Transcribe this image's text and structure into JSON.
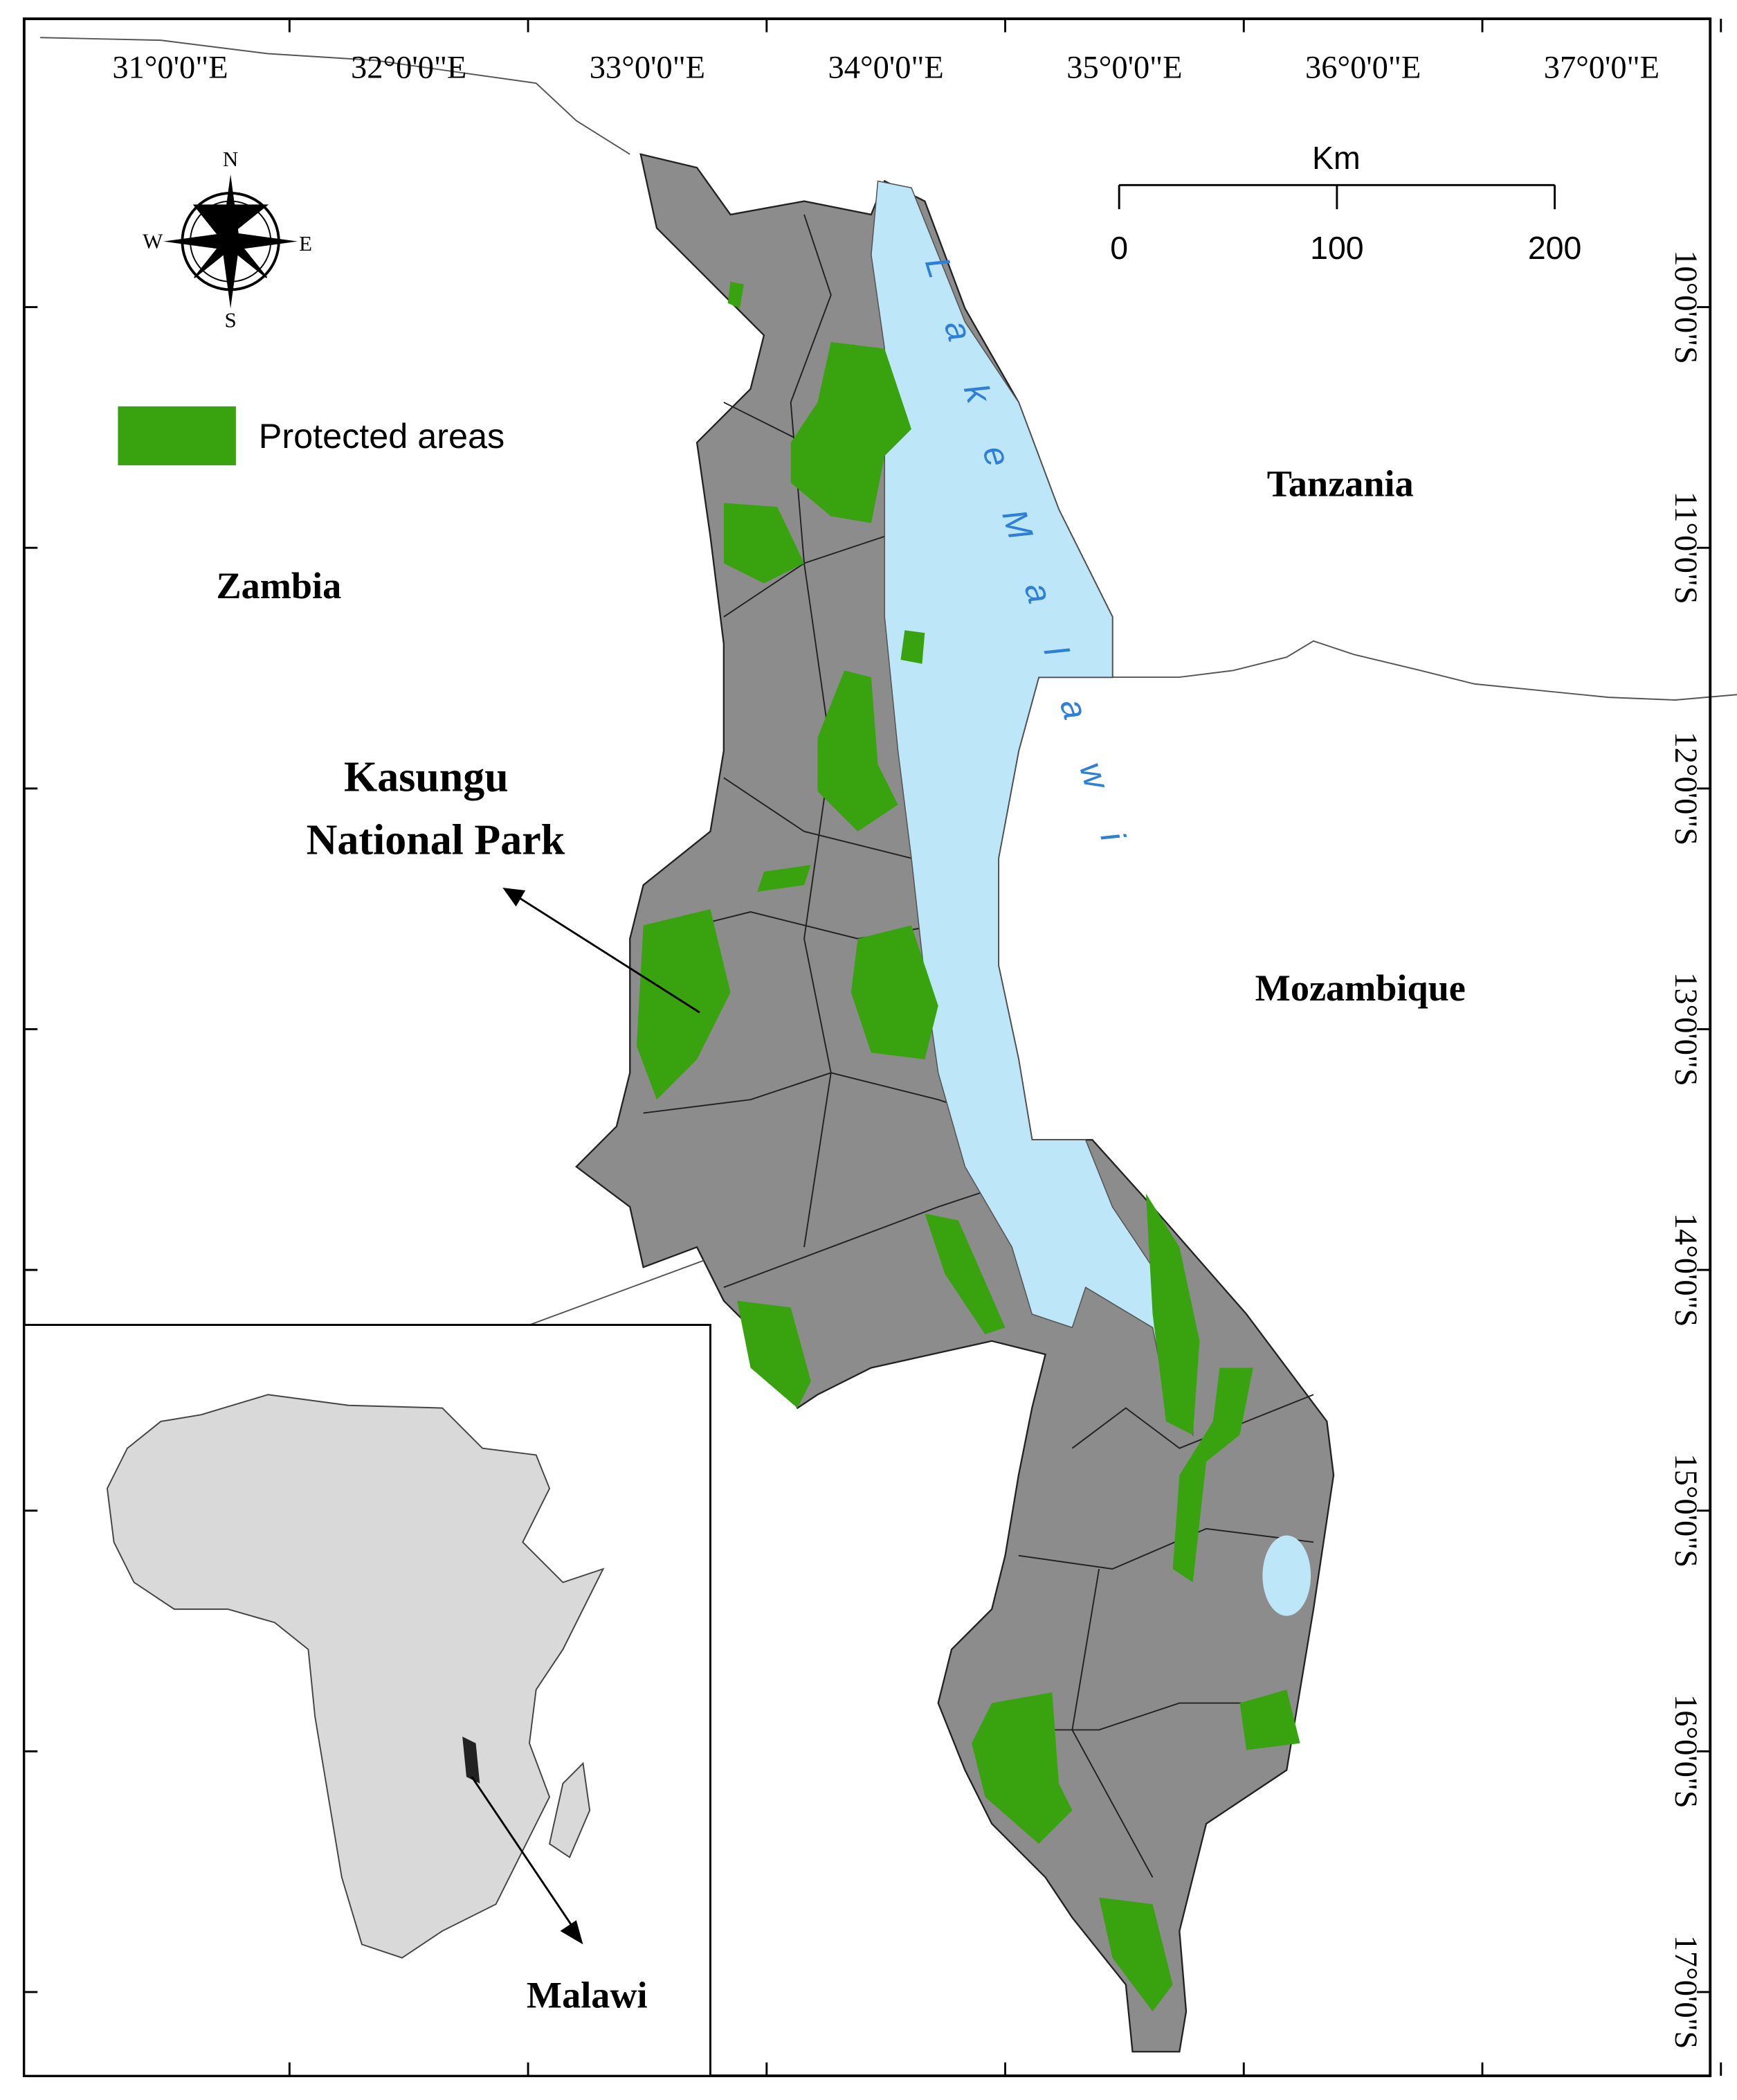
{
  "map": {
    "longitude_labels": [
      "31°0'0\"E",
      "32°0'0\"E",
      "33°0'0\"E",
      "34°0'0\"E",
      "35°0'0\"E",
      "36°0'0\"E",
      "37°0'0\"E"
    ],
    "latitude_labels": [
      "10°0'0\"S",
      "11°0'0\"S",
      "12°0'0\"S",
      "13°0'0\"S",
      "14°0'0\"S",
      "15°0'0\"S",
      "16°0'0\"S",
      "17°0'0\"S"
    ],
    "scale_bar": {
      "unit": "Km",
      "ticks": [
        0,
        100,
        200
      ]
    },
    "compass": {
      "north": "N",
      "south": "S",
      "east": "E",
      "west": "W"
    },
    "legend": {
      "label": "Protected areas",
      "color": "#38a30f"
    },
    "countries": {
      "tanzania": "Tanzania",
      "zambia": "Zambia",
      "mozambique": "Mozambique"
    },
    "lake": "L a k e  M a l a w i",
    "callout": [
      "Kasungu",
      "National Park"
    ],
    "inset_label": "Malawi"
  }
}
